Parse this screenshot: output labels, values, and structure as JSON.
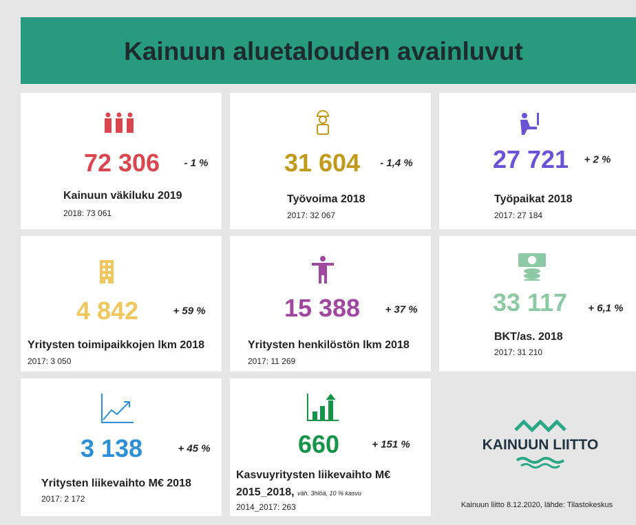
{
  "header": {
    "title": "Kainuun aluetalouden avainluvut"
  },
  "cards": [
    {
      "value": "72 306",
      "change": "- 1 %",
      "label": "Kainuun väkiluku 2019",
      "previous": "2018: 73 061"
    },
    {
      "value": "31 604",
      "change": "- 1,4 %",
      "label": "Työvoima 2018",
      "previous": "2017: 32 067"
    },
    {
      "value": "27 721",
      "change": "+ 2 %",
      "label": "Työpaikat 2018",
      "previous": "2017: 27 184"
    },
    {
      "value": "4 842",
      "change": "+ 59 %",
      "label": "Yritysten toimipaikkojen lkm 2018",
      "previous": "2017: 3 050"
    },
    {
      "value": "15 388",
      "change": "+ 37 %",
      "label": "Yritysten henkilöstön lkm 2018",
      "previous": "2017: 11 269"
    },
    {
      "value": "33 117",
      "change": "+ 6,1 %",
      "label": "BKT/as. 2018",
      "previous": "2017: 31 210"
    },
    {
      "value": "3 138",
      "change": "+ 45 %",
      "label": "Yritysten liikevaihto M€ 2018",
      "previous": "2017: 2 172"
    },
    {
      "value": "660",
      "change": "+ 151 %",
      "label": "Kasvuyritysten liikevaihto M€ 2015_2018,",
      "note": "väh. 3hlöä, 10 % kasvu",
      "previous": "2014_2017: 263"
    }
  ],
  "logo": {
    "text": "KAINUUN LIITTO"
  },
  "footer": {
    "source": "Kainuun liitto 8.12.2020, lähde: Tilastokeskus"
  }
}
